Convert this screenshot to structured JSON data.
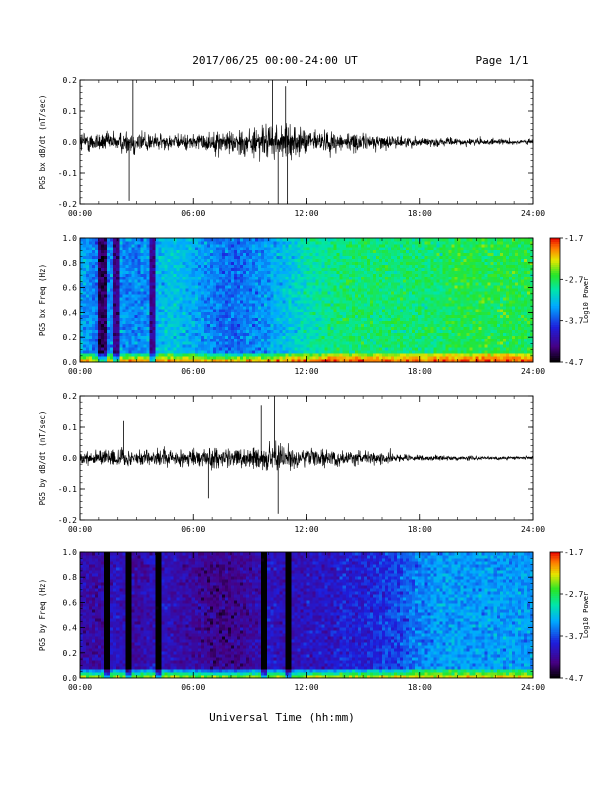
{
  "header": {
    "title": "2017/06/25  00:00-24:00 UT",
    "page": "Page 1/1"
  },
  "xlabel": "Universal Time (hh:mm)",
  "chart_data": [
    {
      "type": "line",
      "ylabel": "PG5 bx dB/dt (nT/sec)",
      "xlim": [
        0,
        24
      ],
      "ylim": [
        -0.2,
        0.2
      ],
      "xticks": [
        "00:00",
        "06:00",
        "12:00",
        "18:00",
        "24:00"
      ],
      "yticks": [
        "0.2",
        "0.1",
        "0.0",
        "-0.1",
        "-0.2"
      ],
      "envelope": {
        "x": [
          0,
          1,
          2,
          3,
          4,
          5,
          6,
          7,
          8,
          9,
          10,
          11,
          12,
          13,
          14,
          15,
          16,
          17,
          18,
          19,
          20,
          21,
          22,
          23,
          24
        ],
        "amplitude": [
          0.08,
          0.07,
          0.07,
          0.1,
          0.06,
          0.05,
          0.06,
          0.07,
          0.09,
          0.1,
          0.12,
          0.11,
          0.09,
          0.08,
          0.07,
          0.06,
          0.05,
          0.04,
          0.035,
          0.03,
          0.025,
          0.025,
          0.02,
          0.02,
          0.02
        ]
      },
      "spikes": [
        {
          "x": 2.8,
          "y": 0.2
        },
        {
          "x": 2.6,
          "y": -0.19
        },
        {
          "x": 10.2,
          "y": 0.2
        },
        {
          "x": 10.5,
          "y": -0.2
        },
        {
          "x": 11.0,
          "y": -0.2
        },
        {
          "x": 10.9,
          "y": 0.18
        }
      ]
    },
    {
      "type": "heatmap",
      "ylabel": "PG5 bx Freq (Hz)",
      "xlim": [
        0,
        24
      ],
      "ylim": [
        0,
        1
      ],
      "xticks": [
        "00:00",
        "06:00",
        "12:00",
        "18:00",
        "24:00"
      ],
      "yticks": [
        "1.0",
        "0.8",
        "0.6",
        "0.4",
        "0.2",
        "0.0"
      ],
      "colorbar": {
        "label": "Log10 Power",
        "min": -4.7,
        "max": -1.7,
        "ticks": [
          "-1.7",
          "-2.7",
          "-3.7",
          "-4.7"
        ]
      },
      "time_profile": {
        "x": [
          0,
          1,
          2,
          3,
          4,
          5,
          6,
          7,
          8,
          9,
          10,
          11,
          12,
          13,
          14,
          15,
          16,
          17,
          18,
          19,
          20,
          21,
          22,
          23,
          24
        ],
        "level": [
          -3.3,
          -3.6,
          -3.4,
          -3.5,
          -3.3,
          -3.2,
          -3.3,
          -3.5,
          -3.6,
          -3.5,
          -3.4,
          -3.2,
          -3.0,
          -2.9,
          -2.8,
          -2.8,
          -2.8,
          -2.8,
          -2.8,
          -2.8,
          -2.7,
          -2.7,
          -2.7,
          -2.7,
          -2.7
        ]
      },
      "dark_stripes": [
        1.2,
        1.9,
        3.8
      ],
      "low_freq_boost": -1.9
    },
    {
      "type": "line",
      "ylabel": "PG5 by dB/dt (nT/sec)",
      "xlim": [
        0,
        24
      ],
      "ylim": [
        -0.2,
        0.2
      ],
      "xticks": [
        "00:00",
        "06:00",
        "12:00",
        "18:00",
        "24:00"
      ],
      "yticks": [
        "0.2",
        "0.1",
        "0.0",
        "-0.1",
        "-0.2"
      ],
      "envelope": {
        "x": [
          0,
          1,
          2,
          3,
          4,
          5,
          6,
          7,
          8,
          9,
          10,
          11,
          12,
          13,
          14,
          15,
          16,
          17,
          18,
          19,
          20,
          21,
          22,
          23,
          24
        ],
        "amplitude": [
          0.05,
          0.06,
          0.07,
          0.06,
          0.07,
          0.05,
          0.07,
          0.08,
          0.07,
          0.07,
          0.1,
          0.08,
          0.06,
          0.06,
          0.05,
          0.05,
          0.04,
          0.03,
          0.02,
          0.02,
          0.015,
          0.015,
          0.012,
          0.012,
          0.012
        ]
      },
      "spikes": [
        {
          "x": 10.3,
          "y": 0.2
        },
        {
          "x": 10.5,
          "y": -0.18
        },
        {
          "x": 9.6,
          "y": 0.17
        },
        {
          "x": 6.8,
          "y": -0.13
        },
        {
          "x": 2.3,
          "y": 0.12
        }
      ]
    },
    {
      "type": "heatmap",
      "ylabel": "PG5 by Freq (Hz)",
      "xlim": [
        0,
        24
      ],
      "ylim": [
        0,
        1
      ],
      "xticks": [
        "00:00",
        "06:00",
        "12:00",
        "18:00",
        "24:00"
      ],
      "yticks": [
        "1.0",
        "0.8",
        "0.6",
        "0.4",
        "0.2",
        "0.0"
      ],
      "colorbar": {
        "label": "Log10 Power",
        "min": -4.7,
        "max": -1.7,
        "ticks": [
          "-1.7",
          "-2.7",
          "-3.7",
          "-4.7"
        ]
      },
      "time_profile": {
        "x": [
          0,
          1,
          2,
          3,
          4,
          5,
          6,
          7,
          8,
          9,
          10,
          11,
          12,
          13,
          14,
          15,
          16,
          17,
          18,
          19,
          20,
          21,
          22,
          23,
          24
        ],
        "level": [
          -4.1,
          -4.2,
          -4.0,
          -4.2,
          -4.0,
          -4.1,
          -4.2,
          -4.3,
          -4.3,
          -4.2,
          -4.0,
          -4.1,
          -4.0,
          -4.0,
          -3.9,
          -3.9,
          -3.8,
          -3.7,
          -3.5,
          -3.4,
          -3.4,
          -3.4,
          -3.4,
          -3.4,
          -3.4
        ]
      },
      "dark_stripes": [
        1.5,
        2.6,
        4.1,
        9.7,
        11.0
      ],
      "low_freq_boost": -2.1
    }
  ]
}
